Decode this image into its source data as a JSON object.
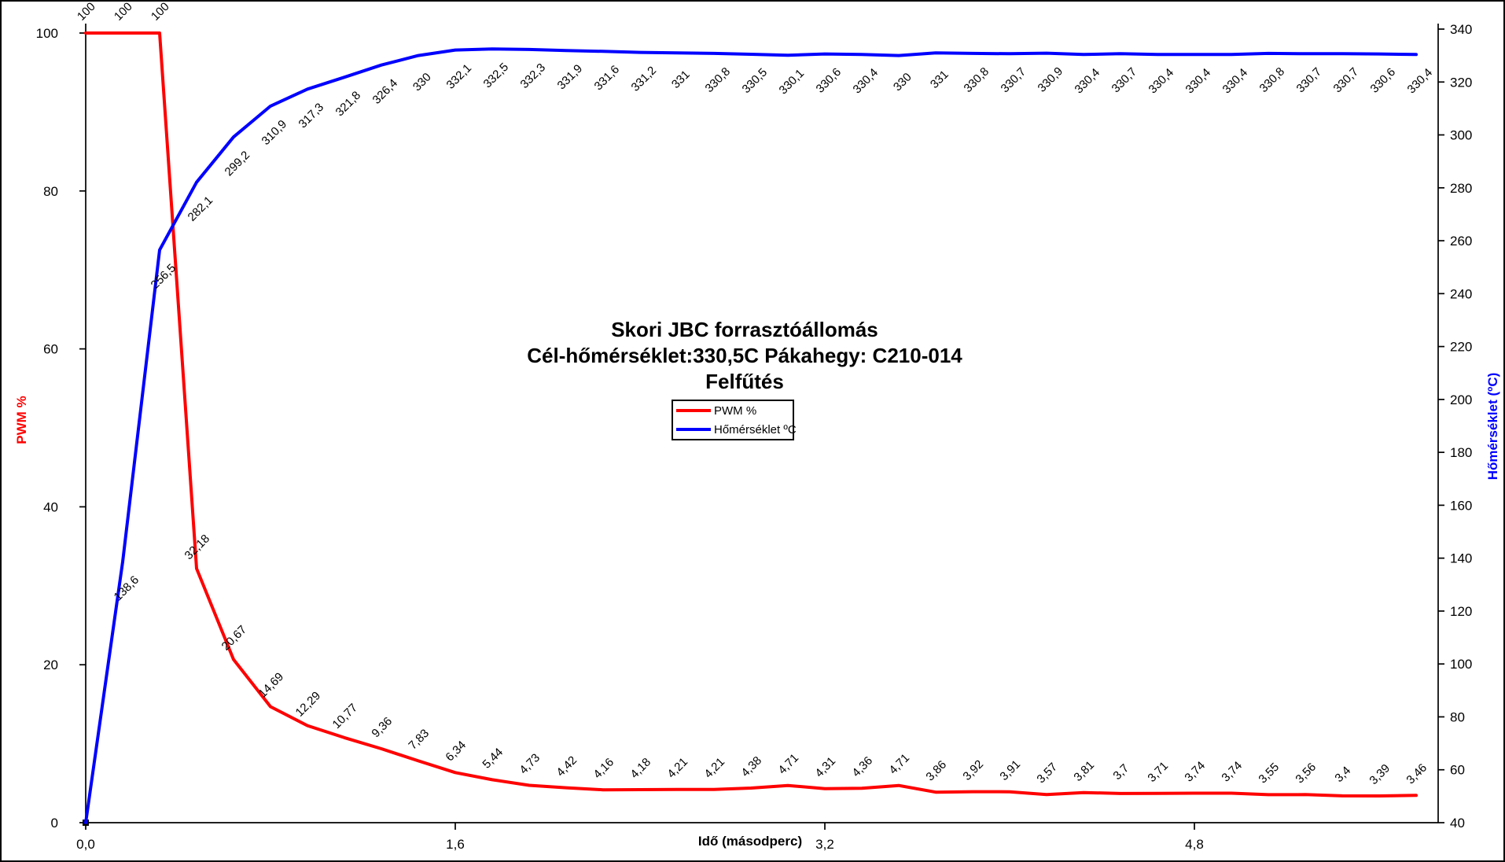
{
  "frame": {
    "background": "#ffffff",
    "border_color": "#000000"
  },
  "chart_data": {
    "type": "line",
    "title_lines": [
      "Skori JBC forrasztóállomás",
      "Cél-hőmérséklet:330,5C Pákahegy: C210-014",
      "Felfűtés"
    ],
    "decimal_separator": ",",
    "grid": false,
    "legend": {
      "position": "center-below-title",
      "items": [
        {
          "label": "PWM %",
          "color": "#ff0000"
        },
        {
          "label": "Hőmérséklet ºC",
          "color": "#0000ff"
        }
      ]
    },
    "x_axis": {
      "label": "Idő (másodperc)",
      "unit": "s",
      "sample_interval": 0.16,
      "tick_values": [
        0,
        1.6,
        3.2,
        4.8
      ],
      "tick_labels": [
        "0,0",
        "1,6",
        "3,2",
        "4,8"
      ]
    },
    "y_left_axis": {
      "label": "PWM %",
      "color": "#ff0000",
      "min": 0,
      "max": 100,
      "tick_step": 20,
      "tick_labels": [
        "0",
        "20",
        "40",
        "60",
        "80",
        "100"
      ]
    },
    "y_right_axis": {
      "label": "Hőmérséklet (ºC)",
      "color": "#0000ff",
      "min": 40,
      "max": 340,
      "tick_step": 20,
      "tick_labels": [
        "40",
        "60",
        "80",
        "100",
        "120",
        "140",
        "160",
        "180",
        "200",
        "220",
        "240",
        "260",
        "280",
        "300",
        "320",
        "340"
      ]
    },
    "series": [
      {
        "name": "PWM %",
        "axis": "left",
        "color": "#ff0000",
        "label_from": 0,
        "label_side": "above",
        "values": [
          100,
          100,
          100,
          32.18,
          20.67,
          14.69,
          12.29,
          10.77,
          9.36,
          7.83,
          6.34,
          5.44,
          4.73,
          4.42,
          4.16,
          4.18,
          4.21,
          4.21,
          4.38,
          4.71,
          4.31,
          4.36,
          4.71,
          3.86,
          3.92,
          3.91,
          3.57,
          3.81,
          3.7,
          3.71,
          3.74,
          3.74,
          3.55,
          3.56,
          3.4,
          3.39,
          3.46
        ]
      },
      {
        "name": "Hőmérséklet ºC",
        "axis": "right",
        "color": "#0000ff",
        "label_from": 1,
        "label_side": "below",
        "values": [
          40,
          138.6,
          256.5,
          282.1,
          299.2,
          310.9,
          317.3,
          321.8,
          326.4,
          330,
          332.1,
          332.5,
          332.3,
          331.9,
          331.6,
          331.2,
          331,
          330.8,
          330.5,
          330.1,
          330.6,
          330.4,
          330,
          331,
          330.8,
          330.7,
          330.9,
          330.4,
          330.7,
          330.4,
          330.4,
          330.4,
          330.8,
          330.7,
          330.7,
          330.6,
          330.4
        ]
      }
    ]
  }
}
